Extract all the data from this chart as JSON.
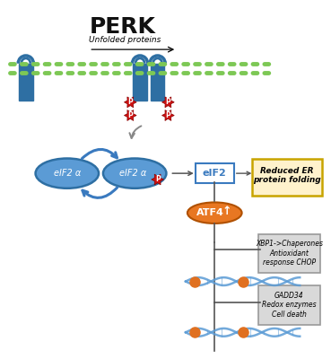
{
  "title": "PERK",
  "title_fontsize": 18,
  "title_fontweight": "bold",
  "bg_color": "#ffffff",
  "membrane_color": "#7dc855",
  "receptor_color": "#2e6fa3",
  "p_color": "#cc1111",
  "p_text_color": "#ffffff",
  "ellipse_fill": "#5b9bd5",
  "ellipse_edge": "#2e6fa3",
  "arrow_color": "#3a7abf",
  "eif2_box_fill": "#ffffff",
  "eif2_box_edge": "#3a7abf",
  "atf4_fill": "#e87722",
  "atf4_edge": "#b05000",
  "atf4_text": "#ffffff",
  "reduced_er_fill": "#fff2cc",
  "reduced_er_edge": "#c8a400",
  "gray_box_fill": "#d9d9d9",
  "gray_box_edge": "#999999",
  "unfolded_text": "Unfolded proteins",
  "box1_lines": [
    "XBP1->Chaperones",
    "Antioxidant",
    "response CHOP"
  ],
  "box2_lines": [
    "GADD34",
    "Redox enzymes",
    "Cell death"
  ],
  "dna_orange": "#e07020",
  "dna_blue": "#5b9bd5"
}
